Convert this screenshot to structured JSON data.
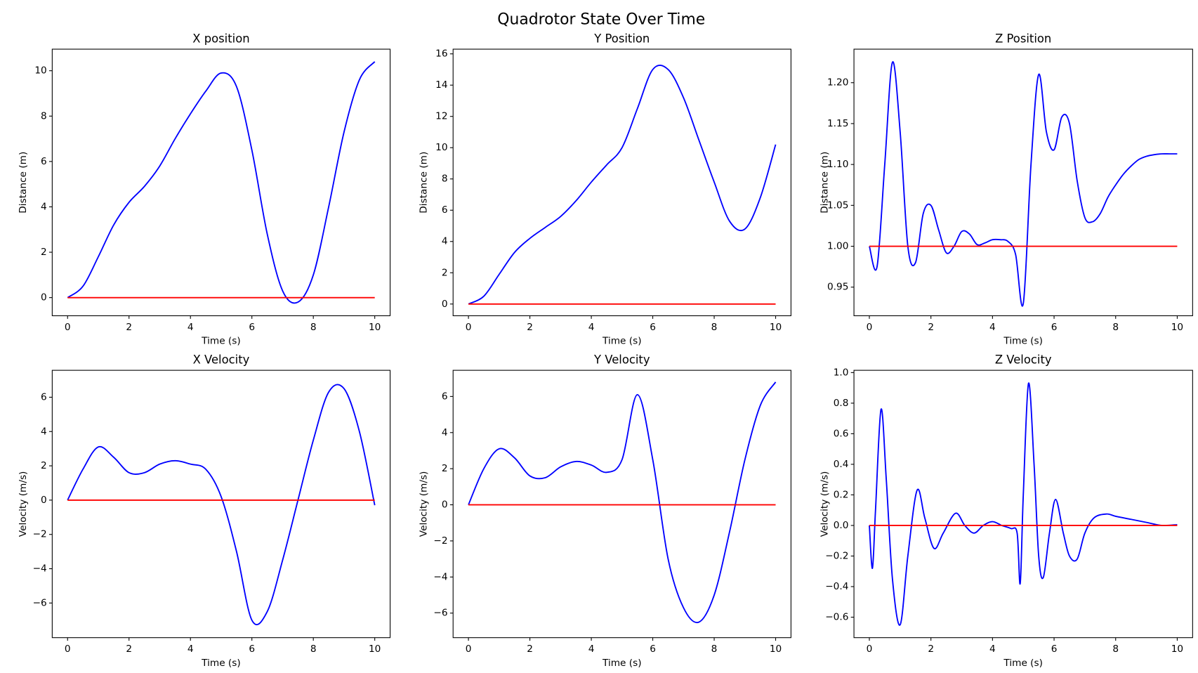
{
  "title": "Quadrotor State Over Time",
  "chart_data": [
    {
      "type": "line",
      "title": "X position",
      "x_label": "Time (s)",
      "y_label": "Distance (m)",
      "x": [
        0,
        0.5,
        1,
        1.5,
        2,
        2.5,
        3,
        3.5,
        4,
        4.5,
        5,
        5.5,
        6,
        6.5,
        7,
        7.5,
        8,
        8.5,
        9,
        9.5,
        10
      ],
      "series": [
        {
          "color": "#0000ff",
          "values": [
            0,
            0.5,
            1.8,
            3.2,
            4.2,
            4.9,
            5.8,
            7.0,
            8.1,
            9.1,
            9.9,
            9.3,
            6.5,
            2.8,
            0.3,
            -0.2,
            1.0,
            4.0,
            7.3,
            9.6,
            10.4
          ]
        },
        {
          "color": "#ff0000",
          "x": [
            0,
            10
          ],
          "values": [
            0,
            0
          ]
        }
      ],
      "xlim": [
        -0.5,
        10.5
      ],
      "ylim": [
        -0.8,
        10.95
      ],
      "xticks": [
        0,
        2,
        4,
        6,
        8,
        10
      ],
      "yticks": [
        0,
        2,
        4,
        6,
        8,
        10
      ],
      "grid": false
    },
    {
      "type": "line",
      "title": "Y Position",
      "x_label": "Time (s)",
      "y_label": "Distance (m)",
      "x": [
        0,
        0.5,
        1,
        1.5,
        2,
        2.5,
        3,
        3.5,
        4,
        4.5,
        5,
        5.5,
        6,
        6.5,
        7,
        7.5,
        8,
        8.5,
        9,
        9.5,
        10
      ],
      "series": [
        {
          "color": "#0000ff",
          "values": [
            0,
            0.5,
            1.9,
            3.3,
            4.2,
            4.9,
            5.6,
            6.6,
            7.8,
            8.9,
            10.0,
            12.5,
            15.0,
            15.0,
            13.2,
            10.5,
            7.8,
            5.3,
            4.8,
            6.8,
            10.2
          ]
        },
        {
          "color": "#ff0000",
          "x": [
            0,
            10
          ],
          "values": [
            0,
            0
          ]
        }
      ],
      "xlim": [
        -0.5,
        10.5
      ],
      "ylim": [
        -0.75,
        16.3
      ],
      "xticks": [
        0,
        2,
        4,
        6,
        8,
        10
      ],
      "yticks": [
        0,
        2,
        4,
        6,
        8,
        10,
        12,
        14,
        16
      ],
      "grid": false
    },
    {
      "type": "line",
      "title": "Z Position",
      "x_label": "Time (s)",
      "y_label": "Distance (m)",
      "x": [
        0,
        0.25,
        0.5,
        0.75,
        1,
        1.25,
        1.5,
        1.75,
        2,
        2.25,
        2.5,
        2.75,
        3,
        3.25,
        3.5,
        3.75,
        4,
        4.25,
        4.5,
        4.75,
        5,
        5.25,
        5.5,
        5.75,
        6,
        6.25,
        6.5,
        6.75,
        7,
        7.25,
        7.5,
        7.75,
        8,
        8.25,
        8.5,
        8.75,
        9,
        9.25,
        9.5,
        9.75,
        10
      ],
      "series": [
        {
          "color": "#0000ff",
          "values": [
            1.0,
            0.975,
            1.1,
            1.225,
            1.14,
            1.0,
            0.98,
            1.04,
            1.05,
            1.02,
            0.992,
            1.0,
            1.018,
            1.015,
            1.002,
            1.004,
            1.008,
            1.008,
            1.006,
            0.99,
            0.93,
            1.1,
            1.21,
            1.14,
            1.118,
            1.158,
            1.15,
            1.08,
            1.035,
            1.03,
            1.04,
            1.06,
            1.075,
            1.088,
            1.098,
            1.106,
            1.11,
            1.112,
            1.113,
            1.113,
            1.113
          ]
        },
        {
          "color": "#ff0000",
          "x": [
            0,
            10
          ],
          "values": [
            1,
            1
          ]
        }
      ],
      "xlim": [
        -0.5,
        10.5
      ],
      "ylim": [
        0.915,
        1.241
      ],
      "xticks": [
        0,
        2,
        4,
        6,
        8,
        10
      ],
      "yticks": [
        0.95,
        {
          "value": 1,
          "label": "1.00"
        },
        1.05,
        {
          "value": 1.1,
          "label": "1.10"
        },
        1.15,
        {
          "value": 1.2,
          "label": "1.20"
        }
      ],
      "grid": false
    },
    {
      "type": "line",
      "title": "X Velocity",
      "x_label": "Time (s)",
      "y_label": "Velocity (m/s)",
      "x": [
        0,
        0.5,
        1,
        1.5,
        2,
        2.5,
        3,
        3.5,
        4,
        4.5,
        5,
        5.5,
        6,
        6.5,
        7,
        7.5,
        8,
        8.5,
        9,
        9.5,
        10
      ],
      "series": [
        {
          "color": "#0000ff",
          "values": [
            0,
            1.8,
            3.1,
            2.5,
            1.6,
            1.6,
            2.1,
            2.3,
            2.1,
            1.8,
            0.2,
            -3.0,
            -7.0,
            -6.5,
            -3.5,
            0,
            3.5,
            6.3,
            6.5,
            4.0,
            -0.3
          ]
        },
        {
          "color": "#ff0000",
          "x": [
            0,
            10
          ],
          "values": [
            0,
            0
          ]
        }
      ],
      "xlim": [
        -0.5,
        10.5
      ],
      "ylim": [
        -8.02,
        7.57
      ],
      "xticks": [
        0,
        2,
        4,
        6,
        8,
        10
      ],
      "yticks": [
        {
          "value": -6,
          "label": "−6"
        },
        {
          "value": -4,
          "label": "−4"
        },
        {
          "value": -2,
          "label": "−2"
        },
        0,
        2,
        4,
        6
      ],
      "grid": false
    },
    {
      "type": "line",
      "title": "Y Velocity",
      "x_label": "Time (s)",
      "y_label": "Velocity (m/s)",
      "x": [
        0,
        0.5,
        1,
        1.5,
        2,
        2.5,
        3,
        3.5,
        4,
        4.5,
        5,
        5.5,
        6,
        6.5,
        7,
        7.5,
        8,
        8.5,
        9,
        9.5,
        10
      ],
      "series": [
        {
          "color": "#0000ff",
          "values": [
            0,
            2.0,
            3.1,
            2.6,
            1.6,
            1.5,
            2.1,
            2.4,
            2.2,
            1.8,
            2.5,
            6.1,
            2.5,
            -3.0,
            -5.7,
            -6.5,
            -5.0,
            -1.5,
            2.5,
            5.5,
            6.8
          ]
        },
        {
          "color": "#ff0000",
          "x": [
            0,
            10
          ],
          "values": [
            0,
            0
          ]
        }
      ],
      "xlim": [
        -0.5,
        10.5
      ],
      "ylim": [
        -7.36,
        7.45
      ],
      "xticks": [
        0,
        2,
        4,
        6,
        8,
        10
      ],
      "yticks": [
        {
          "value": -6,
          "label": "−6"
        },
        {
          "value": -4,
          "label": "−4"
        },
        {
          "value": -2,
          "label": "−2"
        },
        0,
        2,
        4,
        6
      ],
      "grid": false
    },
    {
      "type": "line",
      "title": "Z Velocity",
      "x_label": "Time (s)",
      "y_label": "Velocity (m/s)",
      "x": [
        0,
        0.1,
        0.2,
        0.38,
        0.55,
        0.75,
        1.0,
        1.25,
        1.55,
        1.8,
        2.1,
        2.4,
        2.8,
        3.1,
        3.4,
        3.7,
        4.0,
        4.3,
        4.6,
        4.8,
        4.9,
        5.0,
        5.17,
        5.35,
        5.5,
        5.65,
        5.85,
        6.05,
        6.3,
        6.5,
        6.75,
        7.0,
        7.3,
        7.7,
        8.0,
        8.5,
        9.0,
        9.5,
        10.0
      ],
      "series": [
        {
          "color": "#0000ff",
          "values": [
            0,
            -0.28,
            0.1,
            0.76,
            0.3,
            -0.35,
            -0.65,
            -0.2,
            0.23,
            0.05,
            -0.15,
            -0.05,
            0.08,
            0.0,
            -0.05,
            0.0,
            0.025,
            0.0,
            -0.02,
            -0.05,
            -0.38,
            0.2,
            0.93,
            0.4,
            -0.2,
            -0.34,
            -0.05,
            0.17,
            -0.05,
            -0.2,
            -0.22,
            -0.05,
            0.05,
            0.075,
            0.06,
            0.04,
            0.02,
            0.0,
            0.005
          ]
        },
        {
          "color": "#ff0000",
          "x": [
            0,
            10
          ],
          "values": [
            0,
            0
          ]
        }
      ],
      "xlim": [
        -0.5,
        10.5
      ],
      "ylim": [
        -0.734,
        1.015
      ],
      "xticks": [
        0,
        2,
        4,
        6,
        8,
        10
      ],
      "yticks": [
        {
          "value": -0.6,
          "label": "−0.6"
        },
        {
          "value": -0.4,
          "label": "−0.4"
        },
        {
          "value": -0.2,
          "label": "−0.2"
        },
        {
          "value": 0,
          "label": "0.0"
        },
        0.2,
        0.4,
        0.6,
        0.8,
        {
          "value": 1,
          "label": "1.0"
        }
      ],
      "grid": false
    }
  ]
}
